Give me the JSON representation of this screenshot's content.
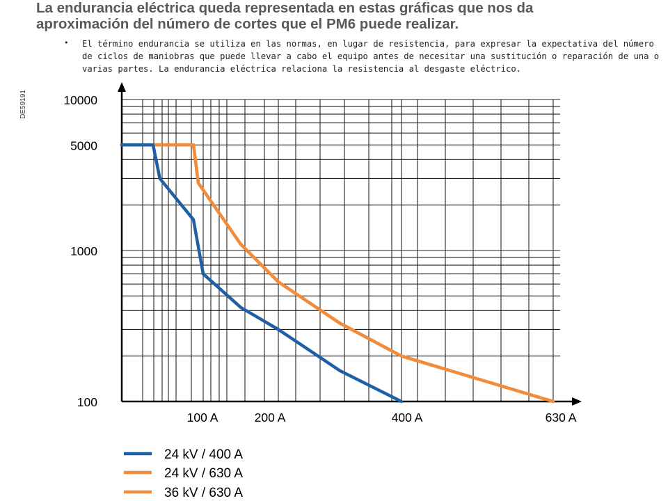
{
  "slide": {
    "title_line1": "La endurancia eléctrica queda representada en estas gráficas que nos da",
    "title_line2": "aproximación del número de cortes que el PM6 puede realizar.",
    "bullet_text": "El término endurancia se utiliza en las normas, en lugar de resistencia, para expresar la expectativa del número de ciclos de maniobras que puede llevar a cabo el equipo antes de necesitar una sustitución o reparación de una o varias partes. La endurancia eléctrica relaciona la resistencia al desgaste eléctrico."
  },
  "chart_data": {
    "type": "line",
    "code": "DE59191",
    "y_scale": "log",
    "ylim": [
      100,
      10000
    ],
    "y_ticks": [
      "10000",
      "5000",
      "1000",
      "100"
    ],
    "x_ticks": [
      "100 A",
      "200 A",
      "400 A",
      "630 A"
    ],
    "grid": true,
    "legend_position": "bottom-left",
    "colors": {
      "blue": "#1f5fa6",
      "orange": "#f08c3c"
    },
    "series": [
      {
        "name": "24 kV / 400 A",
        "color": "#1f5fa6",
        "points": [
          [
            "0 A",
            5000
          ],
          [
            "20 A",
            5000
          ],
          [
            "25 A",
            3000
          ],
          [
            "50 A",
            1600
          ],
          [
            "100 A",
            700
          ],
          [
            "150 A",
            420
          ],
          [
            "200 A",
            300
          ],
          [
            "300 A",
            160
          ],
          [
            "400 A",
            100
          ]
        ]
      },
      {
        "name": "24 kV / 630 A",
        "color": "#f08c3c",
        "points": [
          [
            "20 A",
            5000
          ],
          [
            "50 A",
            5000
          ],
          [
            "75 A",
            2800
          ],
          [
            "150 A",
            1100
          ],
          [
            "200 A",
            620
          ],
          [
            "300 A",
            330
          ],
          [
            "400 A",
            200
          ],
          [
            "630 A",
            100
          ]
        ]
      },
      {
        "name": "36 kV / 630 A",
        "color": "#f08c3c",
        "points": [
          [
            "20 A",
            5000
          ],
          [
            "50 A",
            5000
          ],
          [
            "75 A",
            2800
          ],
          [
            "150 A",
            1100
          ],
          [
            "200 A",
            620
          ],
          [
            "300 A",
            330
          ],
          [
            "400 A",
            200
          ],
          [
            "630 A",
            100
          ]
        ]
      }
    ]
  }
}
